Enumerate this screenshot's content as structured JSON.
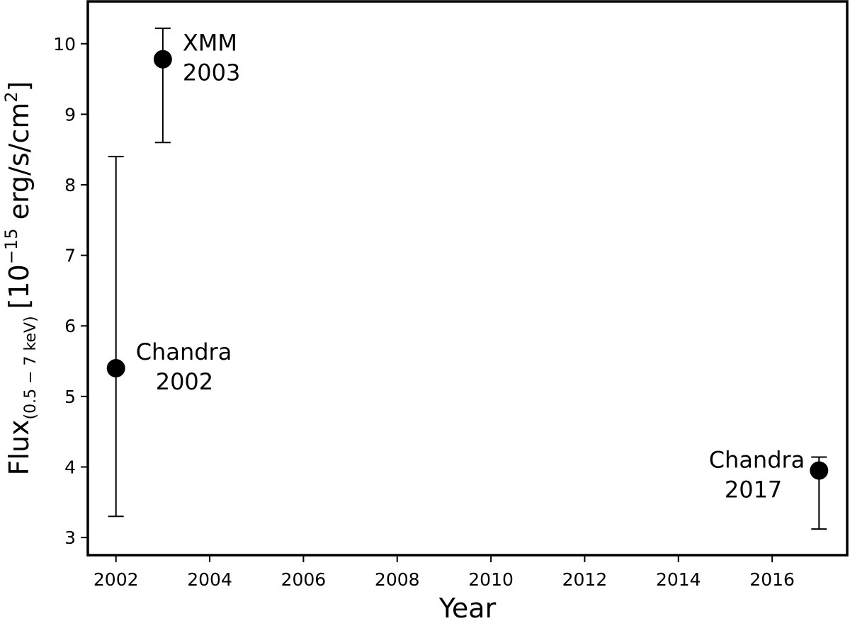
{
  "chart_data": {
    "type": "scatter",
    "xlabel": "Year",
    "ylabel": {
      "main": "Flux",
      "subscript": "(0.5 − 7 keV)",
      "units_pre": "[10",
      "units_exp": "−15",
      "units_mid": " erg/s/cm",
      "units_sup": "2",
      "units_post": "]"
    },
    "xlim": [
      2001.4,
      2017.6
    ],
    "ylim": [
      2.75,
      10.6
    ],
    "xticks": [
      2002,
      2004,
      2006,
      2008,
      2010,
      2012,
      2014,
      2016
    ],
    "yticks": [
      3,
      4,
      5,
      6,
      7,
      8,
      9,
      10
    ],
    "grid": false,
    "legend": "none",
    "marker_color": "#000000",
    "points": [
      {
        "x": 2002,
        "y": 5.4,
        "yerr_low": 3.3,
        "yerr_high": 8.4,
        "annotation": [
          "Chandra",
          "2002"
        ],
        "annotation_side": "right"
      },
      {
        "x": 2003,
        "y": 9.78,
        "yerr_low": 8.6,
        "yerr_high": 10.22,
        "annotation": [
          "XMM",
          "2003"
        ],
        "annotation_side": "right"
      },
      {
        "x": 2017,
        "y": 3.95,
        "yerr_low": 3.12,
        "yerr_high": 4.14,
        "annotation": [
          "Chandra",
          "2017"
        ],
        "annotation_side": "left"
      }
    ]
  }
}
